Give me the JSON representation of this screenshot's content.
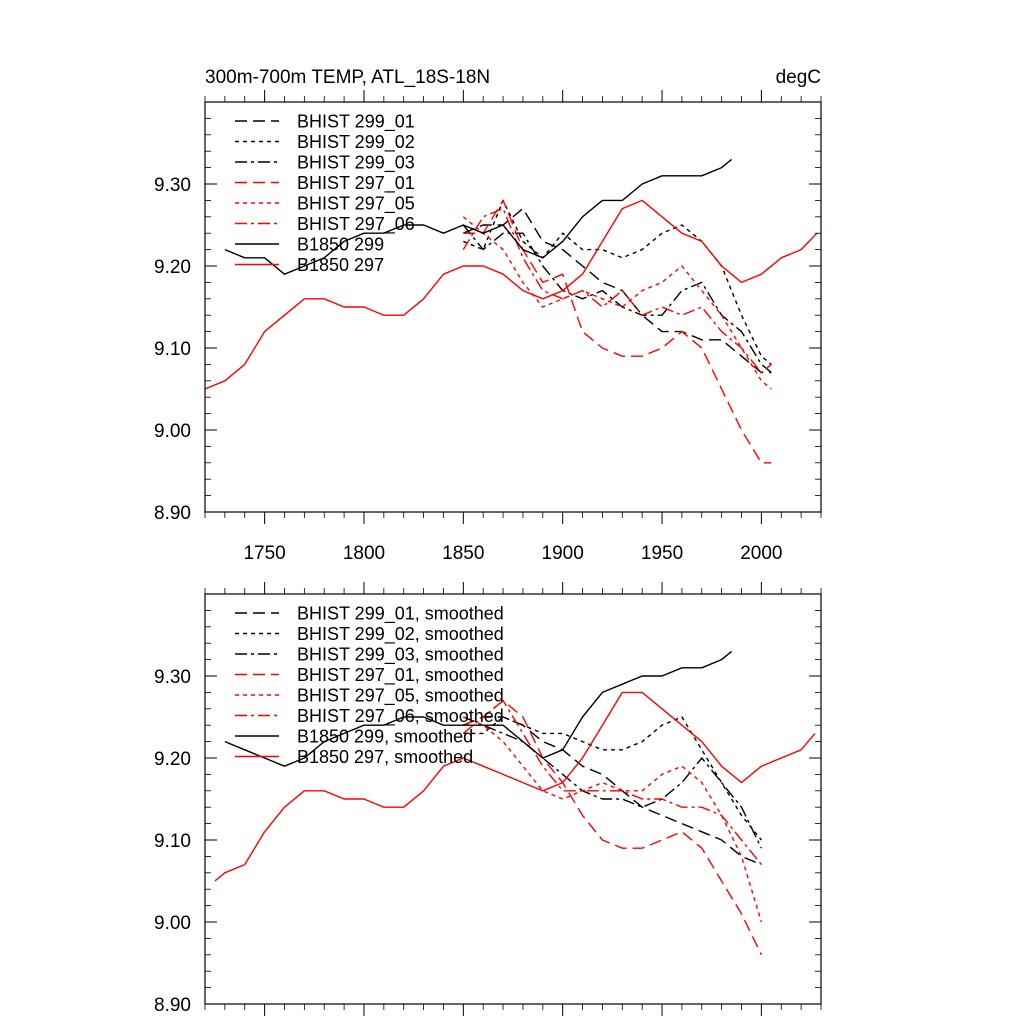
{
  "colors": {
    "black": "#000000",
    "red": "#ff0000"
  },
  "chart_data": [
    {
      "type": "line",
      "title": "300m-700m TEMP, ATL_18S-18N",
      "units": "degC",
      "xlim": [
        1720,
        2030
      ],
      "ylim": [
        8.9,
        9.4
      ],
      "xticks": [
        1750,
        1800,
        1850,
        1900,
        1950,
        2000
      ],
      "xtick_labels": [
        "1750",
        "1800",
        "1850",
        "1900",
        "1950",
        "2000"
      ],
      "yticks": [
        8.9,
        9.0,
        9.1,
        9.2,
        9.3
      ],
      "ytick_labels": [
        "8.90",
        "9.00",
        "9.10",
        "9.20",
        "9.30"
      ],
      "legend_position": "top-left",
      "series": [
        {
          "name": "BHIST 299_01",
          "color": "black",
          "dash": "dash",
          "x": [
            1850,
            1860,
            1870,
            1880,
            1890,
            1900,
            1910,
            1920,
            1930,
            1940,
            1950,
            1960,
            1970,
            1980,
            1990,
            2000,
            2005
          ],
          "y": [
            9.24,
            9.25,
            9.25,
            9.27,
            9.23,
            9.22,
            9.2,
            9.18,
            9.17,
            9.14,
            9.12,
            9.12,
            9.11,
            9.11,
            9.09,
            9.07,
            9.07
          ]
        },
        {
          "name": "BHIST 299_02",
          "color": "black",
          "dash": "dot",
          "x": [
            1850,
            1860,
            1870,
            1880,
            1890,
            1900,
            1910,
            1920,
            1930,
            1940,
            1950,
            1960,
            1970,
            1980,
            1990,
            2000,
            2005
          ],
          "y": [
            9.23,
            9.22,
            9.28,
            9.23,
            9.21,
            9.24,
            9.22,
            9.22,
            9.21,
            9.22,
            9.24,
            9.25,
            9.23,
            9.2,
            9.14,
            9.09,
            9.08
          ]
        },
        {
          "name": "BHIST 299_03",
          "color": "black",
          "dash": "dashdot",
          "x": [
            1850,
            1860,
            1870,
            1880,
            1890,
            1900,
            1910,
            1920,
            1930,
            1940,
            1950,
            1960,
            1970,
            1980,
            1990,
            2000,
            2005
          ],
          "y": [
            9.25,
            9.22,
            9.24,
            9.24,
            9.2,
            9.17,
            9.16,
            9.17,
            9.15,
            9.14,
            9.14,
            9.17,
            9.18,
            9.14,
            9.12,
            9.08,
            9.07
          ]
        },
        {
          "name": "BHIST 297_01",
          "color": "red",
          "dash": "dash",
          "x": [
            1850,
            1860,
            1870,
            1880,
            1890,
            1900,
            1910,
            1920,
            1930,
            1940,
            1950,
            1960,
            1970,
            1980,
            1990,
            2000,
            2005
          ],
          "y": [
            9.24,
            9.24,
            9.28,
            9.22,
            9.18,
            9.19,
            9.12,
            9.1,
            9.09,
            9.09,
            9.1,
            9.12,
            9.1,
            9.05,
            9.0,
            8.96,
            8.96
          ]
        },
        {
          "name": "BHIST 297_05",
          "color": "red",
          "dash": "dot",
          "x": [
            1850,
            1860,
            1870,
            1880,
            1890,
            1900,
            1910,
            1920,
            1930,
            1940,
            1950,
            1960,
            1970,
            1980,
            1990,
            2000,
            2005
          ],
          "y": [
            9.26,
            9.24,
            9.22,
            9.18,
            9.15,
            9.16,
            9.17,
            9.16,
            9.15,
            9.17,
            9.18,
            9.2,
            9.17,
            9.14,
            9.1,
            9.06,
            9.05
          ]
        },
        {
          "name": "BHIST 297_06",
          "color": "red",
          "dash": "dashdot",
          "x": [
            1850,
            1860,
            1870,
            1880,
            1890,
            1900,
            1910,
            1920,
            1930,
            1940,
            1950,
            1960,
            1970,
            1980,
            1990,
            2000,
            2005
          ],
          "y": [
            9.22,
            9.26,
            9.27,
            9.21,
            9.17,
            9.16,
            9.17,
            9.15,
            9.17,
            9.14,
            9.15,
            9.14,
            9.15,
            9.12,
            9.1,
            9.07,
            9.08
          ]
        },
        {
          "name": "B1850 299",
          "color": "black",
          "dash": "solid",
          "x": [
            1730,
            1740,
            1750,
            1760,
            1770,
            1780,
            1790,
            1800,
            1810,
            1820,
            1830,
            1840,
            1850,
            1860,
            1870,
            1880,
            1890,
            1900,
            1910,
            1920,
            1930,
            1940,
            1950,
            1960,
            1970,
            1980,
            1985
          ],
          "y": [
            9.22,
            9.21,
            9.21,
            9.19,
            9.2,
            9.21,
            9.23,
            9.24,
            9.24,
            9.25,
            9.25,
            9.24,
            9.25,
            9.24,
            9.25,
            9.22,
            9.21,
            9.23,
            9.26,
            9.28,
            9.28,
            9.3,
            9.31,
            9.31,
            9.31,
            9.32,
            9.33
          ]
        },
        {
          "name": "B1850 297",
          "color": "red",
          "dash": "solid",
          "x": [
            1720,
            1730,
            1740,
            1750,
            1760,
            1770,
            1780,
            1790,
            1800,
            1810,
            1820,
            1830,
            1840,
            1850,
            1860,
            1870,
            1880,
            1890,
            1900,
            1910,
            1920,
            1930,
            1940,
            1950,
            1960,
            1970,
            1980,
            1990,
            2000,
            2010,
            2020,
            2028
          ],
          "y": [
            9.05,
            9.06,
            9.08,
            9.12,
            9.14,
            9.16,
            9.16,
            9.15,
            9.15,
            9.14,
            9.14,
            9.16,
            9.19,
            9.2,
            9.2,
            9.19,
            9.17,
            9.16,
            9.17,
            9.19,
            9.23,
            9.27,
            9.28,
            9.26,
            9.24,
            9.23,
            9.2,
            9.18,
            9.19,
            9.21,
            9.22,
            9.24
          ]
        }
      ]
    },
    {
      "type": "line",
      "xlim": [
        1720,
        2030
      ],
      "ylim": [
        8.9,
        9.4
      ],
      "yticks": [
        8.9,
        9.0,
        9.1,
        9.2,
        9.3
      ],
      "ytick_labels": [
        "8.90",
        "9.00",
        "9.10",
        "9.20",
        "9.30"
      ],
      "legend_position": "top-left",
      "series": [
        {
          "name": "BHIST 299_01, smoothed",
          "color": "black",
          "dash": "dash",
          "x": [
            1850,
            1860,
            1870,
            1880,
            1890,
            1900,
            1910,
            1920,
            1930,
            1940,
            1950,
            1960,
            1970,
            1980,
            1990,
            2000
          ],
          "y": [
            9.24,
            9.25,
            9.25,
            9.24,
            9.22,
            9.21,
            9.19,
            9.18,
            9.16,
            9.14,
            9.13,
            9.12,
            9.11,
            9.1,
            9.08,
            9.07
          ]
        },
        {
          "name": "BHIST 299_02, smoothed",
          "color": "black",
          "dash": "dot",
          "x": [
            1850,
            1860,
            1870,
            1880,
            1890,
            1900,
            1910,
            1920,
            1930,
            1940,
            1950,
            1960,
            1970,
            1980,
            1990,
            2000
          ],
          "y": [
            9.23,
            9.23,
            9.25,
            9.24,
            9.23,
            9.23,
            9.22,
            9.21,
            9.21,
            9.22,
            9.24,
            9.25,
            9.21,
            9.17,
            9.13,
            9.1
          ]
        },
        {
          "name": "BHIST 299_03, smoothed",
          "color": "black",
          "dash": "dashdot",
          "x": [
            1850,
            1860,
            1870,
            1880,
            1890,
            1900,
            1910,
            1920,
            1930,
            1940,
            1950,
            1960,
            1970,
            1980,
            1990,
            2000
          ],
          "y": [
            9.25,
            9.24,
            9.23,
            9.22,
            9.2,
            9.18,
            9.16,
            9.15,
            9.15,
            9.14,
            9.15,
            9.17,
            9.2,
            9.17,
            9.14,
            9.09
          ]
        },
        {
          "name": "BHIST 297_01, smoothed",
          "color": "red",
          "dash": "dash",
          "x": [
            1850,
            1860,
            1870,
            1880,
            1890,
            1900,
            1910,
            1920,
            1930,
            1940,
            1950,
            1960,
            1970,
            1980,
            1990,
            2000
          ],
          "y": [
            9.24,
            9.25,
            9.27,
            9.25,
            9.2,
            9.17,
            9.13,
            9.1,
            9.09,
            9.09,
            9.1,
            9.11,
            9.09,
            9.05,
            9.01,
            8.96
          ]
        },
        {
          "name": "BHIST 297_05, smoothed",
          "color": "red",
          "dash": "dot",
          "x": [
            1850,
            1860,
            1870,
            1880,
            1890,
            1900,
            1910,
            1920,
            1930,
            1940,
            1950,
            1960,
            1970,
            1980,
            1990,
            2000
          ],
          "y": [
            9.25,
            9.24,
            9.22,
            9.19,
            9.16,
            9.15,
            9.16,
            9.17,
            9.16,
            9.16,
            9.18,
            9.19,
            9.17,
            9.13,
            9.08,
            9.0
          ]
        },
        {
          "name": "BHIST 297_06, smoothed",
          "color": "red",
          "dash": "dashdot",
          "x": [
            1850,
            1860,
            1870,
            1880,
            1890,
            1900,
            1910,
            1920,
            1930,
            1940,
            1950,
            1960,
            1970,
            1980,
            1990,
            2000
          ],
          "y": [
            9.23,
            9.25,
            9.27,
            9.23,
            9.19,
            9.16,
            9.16,
            9.16,
            9.16,
            9.15,
            9.15,
            9.14,
            9.14,
            9.13,
            9.1,
            9.07
          ]
        },
        {
          "name": "B1850 299, smoothed",
          "color": "black",
          "dash": "solid",
          "x": [
            1730,
            1740,
            1750,
            1760,
            1770,
            1780,
            1790,
            1800,
            1810,
            1820,
            1830,
            1840,
            1850,
            1860,
            1870,
            1880,
            1890,
            1900,
            1910,
            1920,
            1930,
            1940,
            1950,
            1960,
            1970,
            1980,
            1985
          ],
          "y": [
            9.22,
            9.21,
            9.2,
            9.19,
            9.2,
            9.22,
            9.23,
            9.24,
            9.24,
            9.25,
            9.25,
            9.24,
            9.24,
            9.24,
            9.24,
            9.22,
            9.2,
            9.21,
            9.25,
            9.28,
            9.29,
            9.3,
            9.3,
            9.31,
            9.31,
            9.32,
            9.33
          ]
        },
        {
          "name": "B1850 297, smoothed",
          "color": "red",
          "dash": "solid",
          "x": [
            1725,
            1730,
            1740,
            1750,
            1760,
            1770,
            1780,
            1790,
            1800,
            1810,
            1820,
            1830,
            1840,
            1850,
            1860,
            1870,
            1880,
            1890,
            1900,
            1910,
            1920,
            1930,
            1940,
            1950,
            1960,
            1970,
            1980,
            1990,
            2000,
            2010,
            2020,
            2027
          ],
          "y": [
            9.05,
            9.06,
            9.07,
            9.11,
            9.14,
            9.16,
            9.16,
            9.15,
            9.15,
            9.14,
            9.14,
            9.16,
            9.19,
            9.2,
            9.19,
            9.18,
            9.17,
            9.16,
            9.17,
            9.2,
            9.24,
            9.28,
            9.28,
            9.26,
            9.24,
            9.22,
            9.19,
            9.17,
            9.19,
            9.2,
            9.21,
            9.23
          ]
        }
      ]
    }
  ]
}
